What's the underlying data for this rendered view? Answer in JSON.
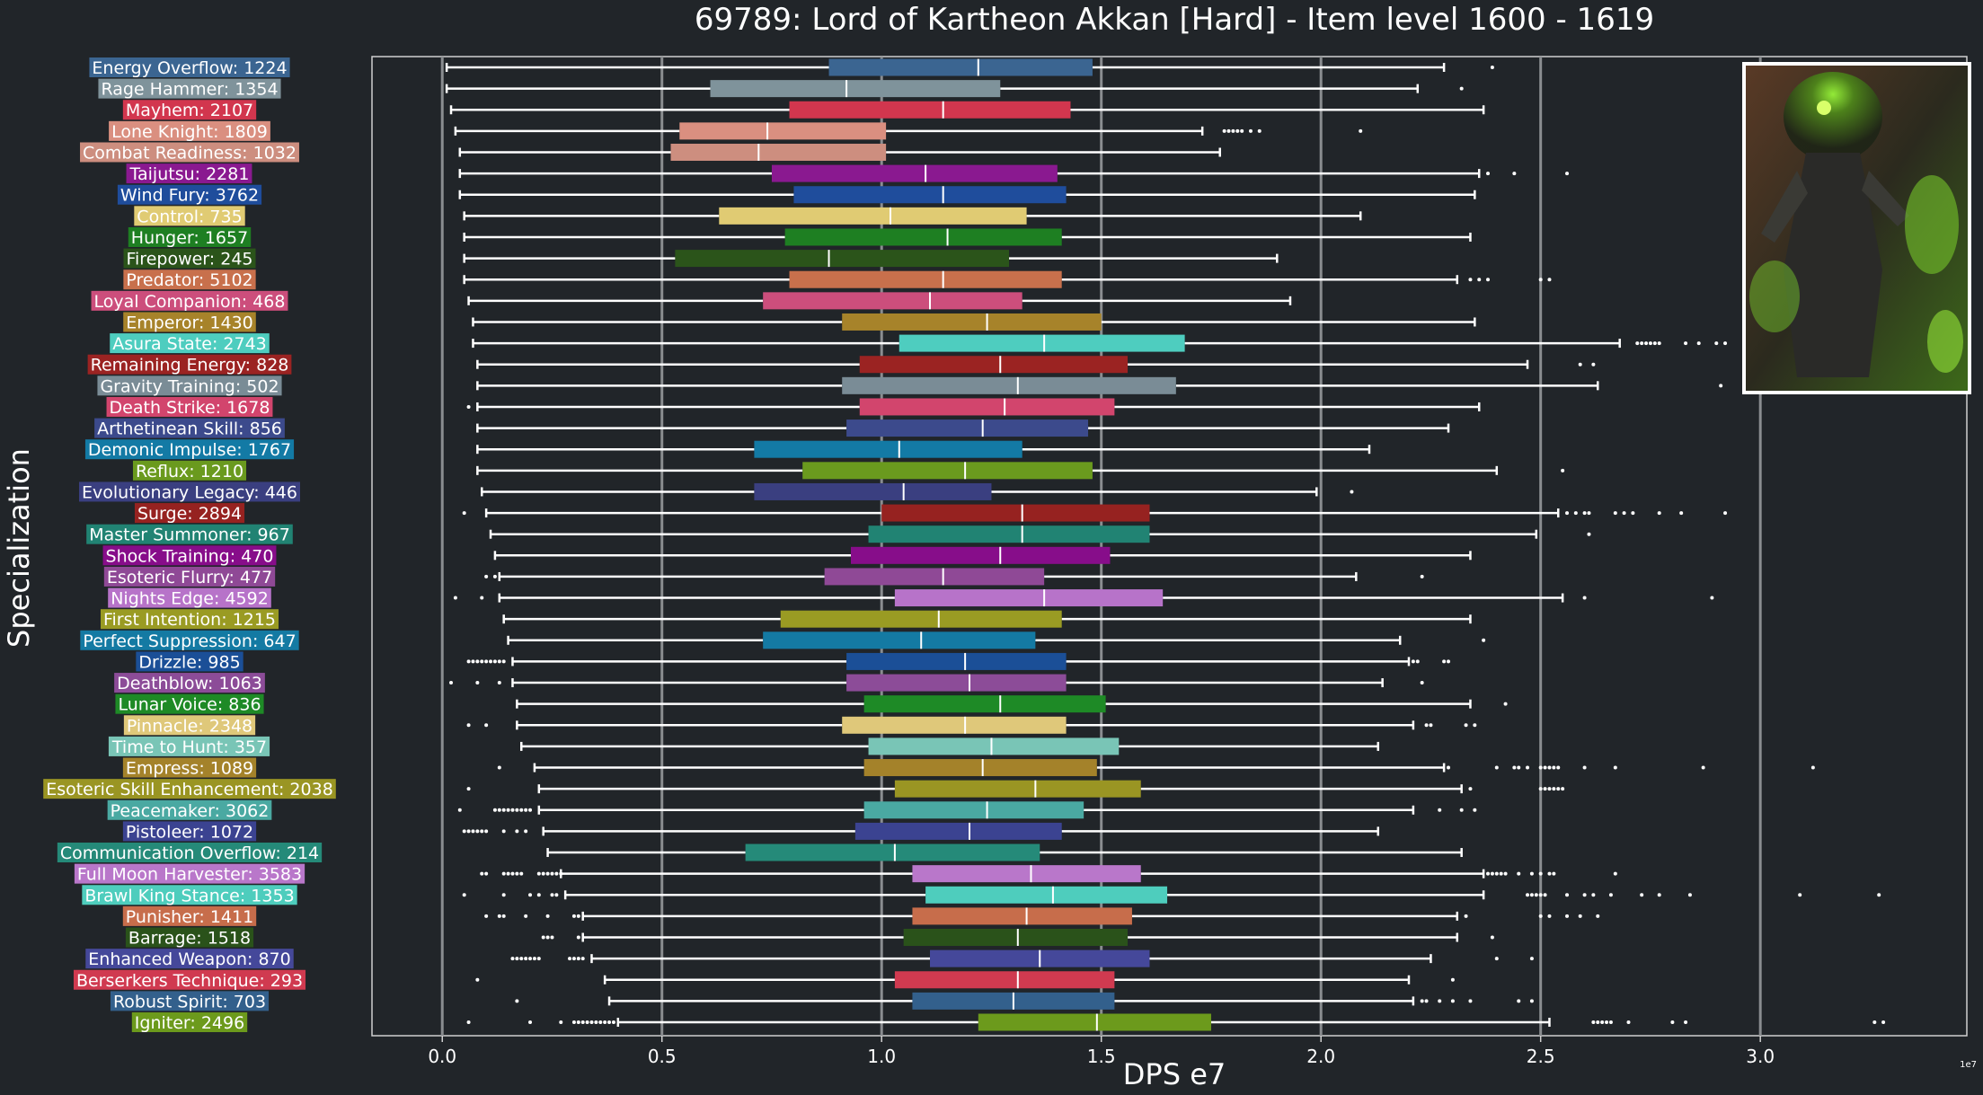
{
  "chart_data": {
    "type": "box",
    "orientation": "horizontal",
    "title": "69789: Lord of Kartheon Akkan [Hard] - Item level 1600 - 1619",
    "xlabel": "DPS e7",
    "ylabel": "Specialization",
    "x_exponent_label": "1e7",
    "xlim": [
      -0.16,
      3.47
    ],
    "xticks": [
      0.0,
      0.5,
      1.0,
      1.5,
      2.0,
      2.5,
      3.0
    ],
    "xtick_labels": [
      "0.0",
      "0.5",
      "1.0",
      "1.5",
      "2.0",
      "2.5",
      "3.0"
    ],
    "grid": "vertical",
    "inset_image": "boss-portrait (green-flamed demon lord)",
    "series": [
      {
        "label": "Energy Overflow: 1224",
        "color": "#3b6591",
        "min": 0.01,
        "q1": 0.88,
        "median": 1.22,
        "q3": 1.48,
        "max": 2.28,
        "outliers": [
          2.39
        ]
      },
      {
        "label": "Rage Hammer: 1354",
        "color": "#7f939b",
        "min": 0.01,
        "q1": 0.61,
        "median": 0.92,
        "q3": 1.27,
        "max": 2.22,
        "outliers": [
          2.32
        ]
      },
      {
        "label": "Mayhem: 2107",
        "color": "#d2364e",
        "min": 0.02,
        "q1": 0.79,
        "median": 1.14,
        "q3": 1.43,
        "max": 2.37,
        "outliers": []
      },
      {
        "label": "Lone Knight: 1809",
        "color": "#da8f80",
        "min": 0.03,
        "q1": 0.54,
        "median": 0.74,
        "q3": 1.01,
        "max": 1.73,
        "outliers": [
          1.78,
          1.79,
          1.8,
          1.81,
          1.82,
          1.84,
          1.86,
          2.09
        ]
      },
      {
        "label": "Combat Readiness: 1032",
        "color": "#cd8e7f",
        "min": 0.04,
        "q1": 0.52,
        "median": 0.72,
        "q3": 1.01,
        "max": 1.77,
        "outliers": []
      },
      {
        "label": "Taijutsu: 2281",
        "color": "#8a1990",
        "min": 0.04,
        "q1": 0.75,
        "median": 1.1,
        "q3": 1.4,
        "max": 2.36,
        "outliers": [
          2.38,
          2.44,
          2.56
        ]
      },
      {
        "label": "Wind Fury: 3762",
        "color": "#1f4d9c",
        "min": 0.04,
        "q1": 0.8,
        "median": 1.14,
        "q3": 1.42,
        "max": 2.35,
        "outliers": []
      },
      {
        "label": "Control: 735",
        "color": "#e0cb73",
        "min": 0.05,
        "q1": 0.63,
        "median": 1.02,
        "q3": 1.33,
        "max": 2.09,
        "outliers": []
      },
      {
        "label": "Hunger: 1657",
        "color": "#1e7f22",
        "min": 0.05,
        "q1": 0.78,
        "median": 1.15,
        "q3": 1.41,
        "max": 2.34,
        "outliers": []
      },
      {
        "label": "Firepower: 245",
        "color": "#2b541a",
        "min": 0.05,
        "q1": 0.53,
        "median": 0.88,
        "q3": 1.29,
        "max": 1.9,
        "outliers": []
      },
      {
        "label": "Predator: 5102",
        "color": "#c8704c",
        "min": 0.05,
        "q1": 0.79,
        "median": 1.14,
        "q3": 1.41,
        "max": 2.31,
        "outliers": [
          2.34,
          2.36,
          2.38,
          2.5,
          2.52
        ]
      },
      {
        "label": "Loyal Companion: 468",
        "color": "#cc4e7c",
        "min": 0.06,
        "q1": 0.73,
        "median": 1.11,
        "q3": 1.32,
        "max": 1.93,
        "outliers": []
      },
      {
        "label": "Emperor: 1430",
        "color": "#a7832a",
        "min": 0.07,
        "q1": 0.91,
        "median": 1.24,
        "q3": 1.5,
        "max": 2.35,
        "outliers": []
      },
      {
        "label": "Asura State: 2743",
        "color": "#4ecdbf",
        "min": 0.07,
        "q1": 1.04,
        "median": 1.37,
        "q3": 1.69,
        "max": 2.68,
        "outliers": [
          2.72,
          2.73,
          2.74,
          2.75,
          2.76,
          2.77,
          2.83,
          2.86,
          2.9,
          2.92
        ]
      },
      {
        "label": "Remaining Energy: 828",
        "color": "#9b2322",
        "min": 0.08,
        "q1": 0.95,
        "median": 1.27,
        "q3": 1.56,
        "max": 2.47,
        "outliers": [
          2.59,
          2.62
        ]
      },
      {
        "label": "Gravity Training: 502",
        "color": "#7a8c96",
        "min": 0.08,
        "q1": 0.91,
        "median": 1.31,
        "q3": 1.67,
        "max": 2.63,
        "outliers": [
          2.91
        ]
      },
      {
        "label": "Death Strike: 1678",
        "color": "#d2456d",
        "min": 0.08,
        "q1": 0.95,
        "median": 1.28,
        "q3": 1.53,
        "max": 2.36,
        "outliers": [
          0.06
        ]
      },
      {
        "label": "Arthetinean Skill: 856",
        "color": "#3c4a8c",
        "min": 0.08,
        "q1": 0.92,
        "median": 1.23,
        "q3": 1.47,
        "max": 2.29,
        "outliers": []
      },
      {
        "label": "Demonic Impulse: 1767",
        "color": "#137aa5",
        "min": 0.08,
        "q1": 0.71,
        "median": 1.04,
        "q3": 1.32,
        "max": 2.11,
        "outliers": []
      },
      {
        "label": "Reflux: 1210",
        "color": "#6a9a1e",
        "min": 0.08,
        "q1": 0.82,
        "median": 1.19,
        "q3": 1.48,
        "max": 2.4,
        "outliers": [
          2.55
        ]
      },
      {
        "label": "Evolutionary Legacy: 446",
        "color": "#3a3f80",
        "min": 0.09,
        "q1": 0.71,
        "median": 1.05,
        "q3": 1.25,
        "max": 1.99,
        "outliers": [
          2.07
        ]
      },
      {
        "label": "Surge: 2894",
        "color": "#962220",
        "min": 0.1,
        "q1": 1.0,
        "median": 1.32,
        "q3": 1.61,
        "max": 2.54,
        "outliers": [
          0.05,
          2.56,
          2.58,
          2.6,
          2.61,
          2.67,
          2.69,
          2.71,
          2.77,
          2.82,
          2.92
        ]
      },
      {
        "label": "Master Summoner: 967",
        "color": "#218373",
        "min": 0.11,
        "q1": 0.97,
        "median": 1.32,
        "q3": 1.61,
        "max": 2.49,
        "outliers": [
          2.61
        ]
      },
      {
        "label": "Shock Training: 470",
        "color": "#870d8a",
        "min": 0.12,
        "q1": 0.93,
        "median": 1.27,
        "q3": 1.52,
        "max": 2.34,
        "outliers": []
      },
      {
        "label": "Esoteric Flurry: 477",
        "color": "#8f4996",
        "min": 0.13,
        "q1": 0.87,
        "median": 1.14,
        "q3": 1.37,
        "max": 2.08,
        "outliers": [
          0.1,
          0.12,
          2.23
        ]
      },
      {
        "label": "Nights Edge: 4592",
        "color": "#b773c9",
        "min": 0.13,
        "q1": 1.03,
        "median": 1.37,
        "q3": 1.64,
        "max": 2.55,
        "outliers": [
          0.03,
          0.09,
          2.6,
          2.89
        ]
      },
      {
        "label": "First Intention: 1215",
        "color": "#9a9b23",
        "min": 0.14,
        "q1": 0.77,
        "median": 1.13,
        "q3": 1.41,
        "max": 2.34,
        "outliers": []
      },
      {
        "label": "Perfect Suppression: 647",
        "color": "#147aa3",
        "min": 0.15,
        "q1": 0.73,
        "median": 1.09,
        "q3": 1.35,
        "max": 2.18,
        "outliers": [
          2.37
        ]
      },
      {
        "label": "Drizzle: 985",
        "color": "#1b4f97",
        "min": 0.16,
        "q1": 0.92,
        "median": 1.19,
        "q3": 1.42,
        "max": 2.2,
        "outliers": [
          0.06,
          0.07,
          0.08,
          0.09,
          0.1,
          0.11,
          0.12,
          0.13,
          0.14,
          2.21,
          2.22,
          2.28,
          2.29
        ]
      },
      {
        "label": "Deathblow: 1063",
        "color": "#8c4c98",
        "min": 0.16,
        "q1": 0.92,
        "median": 1.2,
        "q3": 1.42,
        "max": 2.14,
        "outliers": [
          0.02,
          0.08,
          0.13,
          2.23
        ]
      },
      {
        "label": "Lunar Voice: 836",
        "color": "#1e8a26",
        "min": 0.17,
        "q1": 0.96,
        "median": 1.27,
        "q3": 1.51,
        "max": 2.34,
        "outliers": [
          2.42
        ]
      },
      {
        "label": "Pinnacle: 2348",
        "color": "#dfc87a",
        "min": 0.17,
        "q1": 0.91,
        "median": 1.19,
        "q3": 1.42,
        "max": 2.21,
        "outliers": [
          0.06,
          0.1,
          2.24,
          2.25,
          2.33,
          2.35
        ]
      },
      {
        "label": "Time to Hunt: 357",
        "color": "#79c5b6",
        "min": 0.18,
        "q1": 0.97,
        "median": 1.25,
        "q3": 1.54,
        "max": 2.13,
        "outliers": []
      },
      {
        "label": "Empress: 1089",
        "color": "#a4822a",
        "min": 0.21,
        "q1": 0.96,
        "median": 1.23,
        "q3": 1.49,
        "max": 2.28,
        "outliers": [
          0.13,
          2.29,
          2.4,
          2.44,
          2.45,
          2.47,
          2.5,
          2.51,
          2.52,
          2.53,
          2.54,
          2.6,
          2.67,
          2.87,
          3.12
        ]
      },
      {
        "label": "Esoteric Skill Enhancement: 2038",
        "color": "#9a9523",
        "min": 0.22,
        "q1": 1.03,
        "median": 1.35,
        "q3": 1.59,
        "max": 2.32,
        "outliers": [
          0.06,
          2.34,
          2.5,
          2.51,
          2.52,
          2.53,
          2.54,
          2.55
        ]
      },
      {
        "label": "Peacemaker: 3062",
        "color": "#4aa9a2",
        "min": 0.22,
        "q1": 0.96,
        "median": 1.24,
        "q3": 1.46,
        "max": 2.21,
        "outliers": [
          0.04,
          0.12,
          0.13,
          0.14,
          0.15,
          0.16,
          0.17,
          0.18,
          0.19,
          0.2,
          2.27,
          2.32,
          2.35
        ]
      },
      {
        "label": "Pistoleer: 1072",
        "color": "#3b4391",
        "min": 0.23,
        "q1": 0.94,
        "median": 1.2,
        "q3": 1.41,
        "max": 2.13,
        "outliers": [
          0.05,
          0.06,
          0.07,
          0.08,
          0.09,
          0.1,
          0.14,
          0.17,
          0.19
        ]
      },
      {
        "label": "Communication Overflow: 214",
        "color": "#258a79",
        "min": 0.24,
        "q1": 0.69,
        "median": 1.03,
        "q3": 1.36,
        "max": 2.32,
        "outliers": []
      },
      {
        "label": "Full Moon Harvester: 3583",
        "color": "#b977ca",
        "min": 0.27,
        "q1": 1.07,
        "median": 1.34,
        "q3": 1.59,
        "max": 2.37,
        "outliers": [
          0.09,
          0.1,
          0.14,
          0.15,
          0.16,
          0.17,
          0.18,
          0.22,
          0.23,
          0.24,
          0.25,
          0.26,
          0.27,
          2.38,
          2.39,
          2.4,
          2.41,
          2.42,
          2.45,
          2.48,
          2.5,
          2.52,
          2.53,
          2.67
        ]
      },
      {
        "label": "Brawl King Stance: 1353",
        "color": "#4ecdbd",
        "min": 0.28,
        "q1": 1.1,
        "median": 1.39,
        "q3": 1.65,
        "max": 2.37,
        "outliers": [
          0.05,
          0.14,
          0.2,
          0.22,
          0.25,
          0.26,
          2.47,
          2.48,
          2.49,
          2.5,
          2.51,
          2.56,
          2.6,
          2.62,
          2.66,
          2.73,
          2.77,
          2.84,
          3.09,
          3.27
        ]
      },
      {
        "label": "Punisher: 1411",
        "color": "#c76d4b",
        "min": 0.32,
        "q1": 1.07,
        "median": 1.33,
        "q3": 1.57,
        "max": 2.31,
        "outliers": [
          0.1,
          0.13,
          0.14,
          0.19,
          0.24,
          0.3,
          0.31,
          2.33,
          2.5,
          2.52,
          2.56,
          2.59,
          2.63
        ]
      },
      {
        "label": "Barrage: 1518",
        "color": "#2a521a",
        "min": 0.32,
        "q1": 1.05,
        "median": 1.31,
        "q3": 1.56,
        "max": 2.31,
        "outliers": [
          0.23,
          0.24,
          0.25,
          0.31,
          2.39
        ]
      },
      {
        "label": "Enhanced Weapon: 870",
        "color": "#45489a",
        "min": 0.34,
        "q1": 1.11,
        "median": 1.36,
        "q3": 1.61,
        "max": 2.25,
        "outliers": [
          0.16,
          0.17,
          0.18,
          0.19,
          0.2,
          0.21,
          0.22,
          0.29,
          0.3,
          0.31,
          0.32,
          2.4,
          2.48
        ]
      },
      {
        "label": "Berserkers Technique: 293",
        "color": "#d03a50",
        "min": 0.37,
        "q1": 1.03,
        "median": 1.31,
        "q3": 1.53,
        "max": 2.2,
        "outliers": [
          0.08,
          2.3
        ]
      },
      {
        "label": "Robust Spirit: 703",
        "color": "#33608c",
        "min": 0.38,
        "q1": 1.07,
        "median": 1.3,
        "q3": 1.53,
        "max": 2.21,
        "outliers": [
          0.17,
          2.23,
          2.24,
          2.27,
          2.3,
          2.34,
          2.45,
          2.48
        ]
      },
      {
        "label": "Igniter: 2496",
        "color": "#6c9a1c",
        "min": 0.4,
        "q1": 1.22,
        "median": 1.49,
        "q3": 1.75,
        "max": 2.52,
        "outliers": [
          0.06,
          0.2,
          0.27,
          0.3,
          0.31,
          0.32,
          0.33,
          0.34,
          0.35,
          0.36,
          0.37,
          0.38,
          0.39,
          2.62,
          2.63,
          2.64,
          2.65,
          2.66,
          2.7,
          2.8,
          2.83,
          3.26,
          3.28
        ]
      }
    ]
  }
}
